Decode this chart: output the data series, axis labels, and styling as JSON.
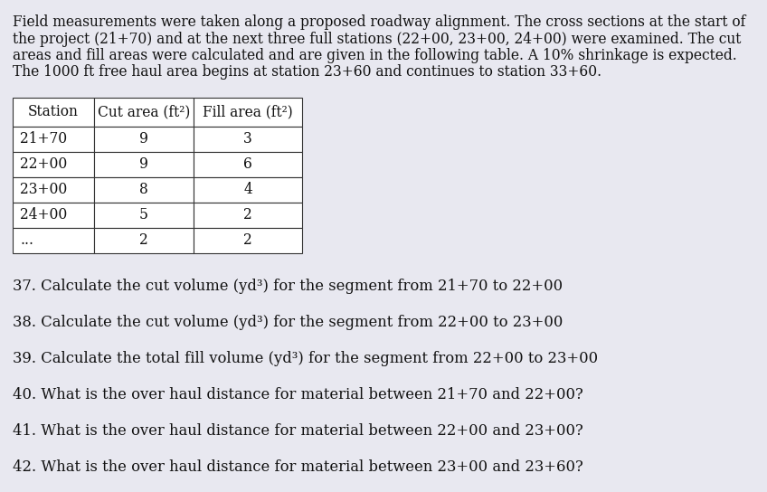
{
  "background_color": "#e8e8f0",
  "para_lines": [
    "Field measurements were taken along a proposed roadway alignment. The cross sections at the start of",
    "the project (21+70) and at the next three full stations (22+00, 23+00, 24+00) were examined. The cut",
    "areas and fill areas were calculated and are given in the following table. A 10% shrinkage is expected.",
    "The 1000 ft free haul area begins at station 23+60 and continues to station 33+60."
  ],
  "table_headers": [
    "Station",
    "Cut area (ft²)",
    "Fill area (ft²)"
  ],
  "table_rows": [
    [
      "21+70",
      "9",
      "3"
    ],
    [
      "22+00",
      "9",
      "6"
    ],
    [
      "23+00",
      "8",
      "4"
    ],
    [
      "24+00",
      "5",
      "2"
    ],
    [
      "...",
      "2",
      "2"
    ]
  ],
  "questions": [
    "37. Calculate the cut volume (yd³) for the segment from 21+70 to 22+00",
    "38. Calculate the cut volume (yd³) for the segment from 22+00 to 23+00",
    "39. Calculate the total fill volume (yd³) for the segment from 22+00 to 23+00",
    "40. What is the over haul distance for material between 21+70 and 22+00?",
    "41. What is the over haul distance for material between 22+00 and 23+00?",
    "42. What is the over haul distance for material between 23+00 and 23+60?"
  ],
  "font_size_para": 11.2,
  "font_size_table": 11.2,
  "font_size_questions": 11.8,
  "text_color": "#111111",
  "table_border_color": "#333333",
  "table_bg": "#ffffff"
}
